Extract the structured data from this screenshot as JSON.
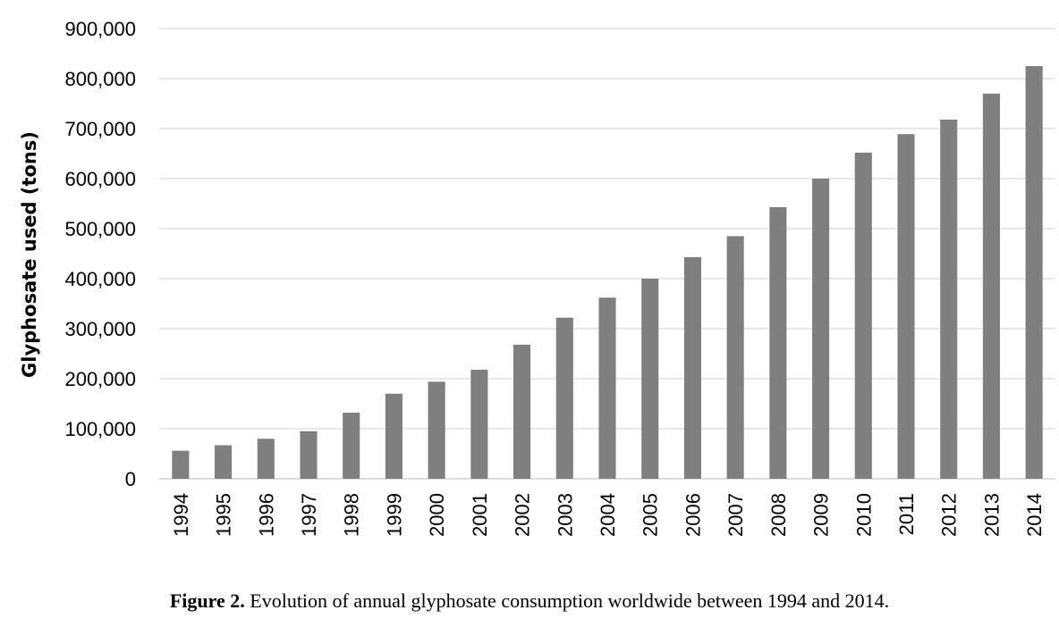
{
  "chart_data": {
    "type": "bar",
    "title": "",
    "xlabel": "",
    "ylabel": "Glyphosate used (tons)",
    "ylim": [
      0,
      900000
    ],
    "yticks": [
      0,
      100000,
      200000,
      300000,
      400000,
      500000,
      600000,
      700000,
      800000,
      900000
    ],
    "ytick_labels": [
      "0",
      "100,000",
      "200,000",
      "300,000",
      "400,000",
      "500,000",
      "600,000",
      "700,000",
      "800,000",
      "900,000"
    ],
    "grid": true,
    "categories": [
      "1994",
      "1995",
      "1996",
      "1997",
      "1998",
      "1999",
      "2000",
      "2001",
      "2002",
      "2003",
      "2004",
      "2005",
      "2006",
      "2007",
      "2008",
      "2009",
      "2010",
      "2011",
      "2012",
      "2013",
      "2014"
    ],
    "values": [
      56000,
      67000,
      80000,
      95000,
      132000,
      170000,
      194000,
      218000,
      268000,
      322000,
      362000,
      400000,
      443000,
      485000,
      543000,
      600000,
      652000,
      689000,
      718000,
      770000,
      825000
    ],
    "bar_color": "#7f7f7f",
    "grid_color": "#e3e3e3"
  },
  "caption": {
    "label": "Figure 2.",
    "text": " Evolution of annual glyphosate consumption worldwide between 1994 and 2014."
  }
}
